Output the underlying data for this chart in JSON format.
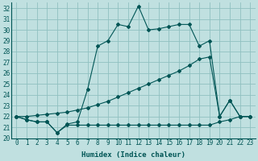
{
  "xlabel": "Humidex (Indice chaleur)",
  "bg_color": "#c0e0e0",
  "grid_color": "#90c0c0",
  "line_color": "#005555",
  "spine_color": "#005555",
  "xlim": [
    -0.5,
    23.5
  ],
  "ylim": [
    20.0,
    32.5
  ],
  "yticks": [
    20,
    21,
    22,
    23,
    24,
    25,
    26,
    27,
    28,
    29,
    30,
    31,
    32
  ],
  "xticks": [
    0,
    1,
    2,
    3,
    4,
    5,
    6,
    7,
    8,
    9,
    10,
    11,
    12,
    13,
    14,
    15,
    16,
    17,
    18,
    19,
    20,
    21,
    22,
    23
  ],
  "humidex": [
    22.0,
    21.7,
    21.5,
    21.5,
    20.5,
    21.3,
    21.5,
    24.5,
    28.5,
    29.0,
    30.5,
    30.3,
    32.2,
    30.0,
    30.1,
    30.3,
    30.5,
    30.5,
    28.5,
    29.0,
    22.0,
    23.5,
    22.0,
    22.0
  ],
  "trend": [
    22.0,
    22.0,
    22.1,
    22.2,
    22.3,
    22.4,
    22.6,
    22.8,
    23.1,
    23.4,
    23.8,
    24.2,
    24.6,
    25.0,
    25.4,
    25.8,
    26.2,
    26.7,
    27.3,
    27.5,
    22.0,
    23.5,
    22.0,
    22.0
  ],
  "minline": [
    22.0,
    21.7,
    21.5,
    21.5,
    20.5,
    21.2,
    21.2,
    21.2,
    21.2,
    21.2,
    21.2,
    21.2,
    21.2,
    21.2,
    21.2,
    21.2,
    21.2,
    21.2,
    21.2,
    21.2,
    21.5,
    21.7,
    22.0,
    22.0
  ],
  "tick_labelsize": 5.5,
  "xlabel_fontsize": 6.5
}
